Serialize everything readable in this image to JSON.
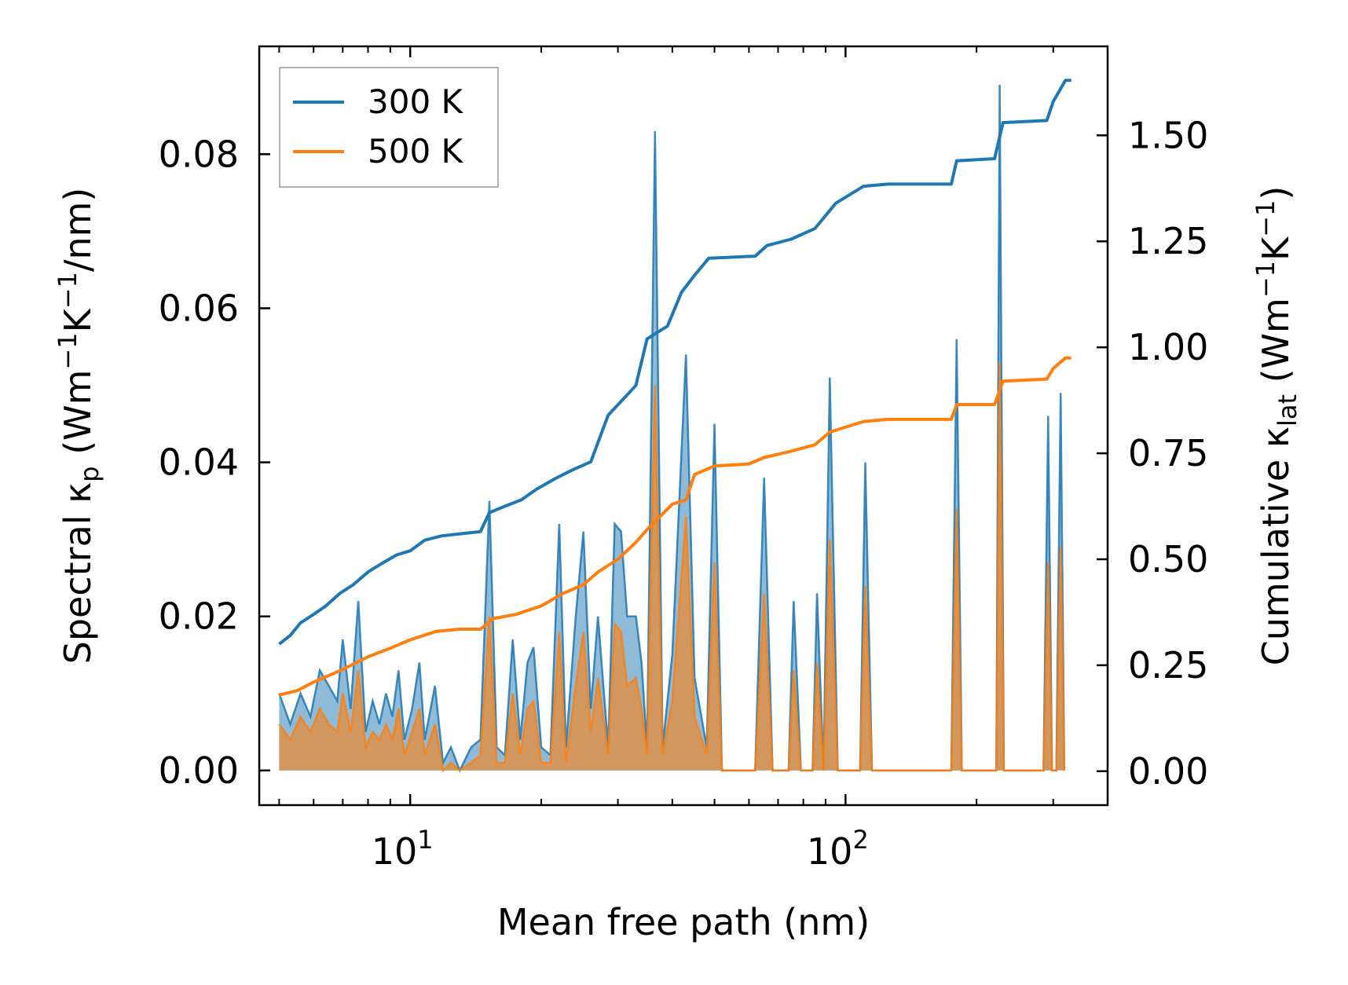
{
  "chart_data": {
    "type": "line",
    "xscale": "log",
    "xlabel": "Mean free path (nm)",
    "ylabel_left": {
      "prefix": "Spectral κ",
      "sub": "p",
      "units_pre": " (Wm",
      "sup1": "−1",
      "mid": "K",
      "sup2": "−1",
      "units_post": "/nm)"
    },
    "ylabel_right": {
      "prefix": "Cumulative κ",
      "sub": "lat",
      "units_pre": " (Wm",
      "sup1": "−1",
      "mid": "K",
      "sup2": "−1",
      "units_post": ")"
    },
    "xlim": [
      4.5,
      400
    ],
    "ylim_left": [
      -0.0045,
      0.094
    ],
    "ylim_right": [
      -0.08,
      1.71
    ],
    "x_ticks": [
      {
        "value": 10,
        "base": "10",
        "exp": "1"
      },
      {
        "value": 100,
        "base": "10",
        "exp": "2"
      }
    ],
    "y_ticks_left": [
      {
        "value": 0.0,
        "label": "0.00"
      },
      {
        "value": 0.02,
        "label": "0.02"
      },
      {
        "value": 0.04,
        "label": "0.04"
      },
      {
        "value": 0.06,
        "label": "0.06"
      },
      {
        "value": 0.08,
        "label": "0.08"
      }
    ],
    "y_ticks_right": [
      {
        "value": 0.0,
        "label": "0.00"
      },
      {
        "value": 0.25,
        "label": "0.25"
      },
      {
        "value": 0.5,
        "label": "0.50"
      },
      {
        "value": 0.75,
        "label": "0.75"
      },
      {
        "value": 1.0,
        "label": "1.00"
      },
      {
        "value": 1.25,
        "label": "1.25"
      },
      {
        "value": 1.5,
        "label": "1.50"
      }
    ],
    "legend": {
      "position": "top-left",
      "entries": [
        {
          "name": "300 K",
          "color": "#1f77b4"
        },
        {
          "name": "500 K",
          "color": "#ff7f0e"
        }
      ]
    },
    "series": [
      {
        "name": "300 K",
        "color": "#1f77b4",
        "axis": "right",
        "kind": "cumulative",
        "points": [
          [
            5.0,
            0.3
          ],
          [
            5.3,
            0.32
          ],
          [
            5.6,
            0.35
          ],
          [
            6.0,
            0.37
          ],
          [
            6.4,
            0.39
          ],
          [
            6.9,
            0.42
          ],
          [
            7.4,
            0.44
          ],
          [
            8.0,
            0.47
          ],
          [
            8.6,
            0.49
          ],
          [
            9.3,
            0.51
          ],
          [
            10.0,
            0.52
          ],
          [
            10.8,
            0.545
          ],
          [
            11.8,
            0.555
          ],
          [
            13.0,
            0.56
          ],
          [
            14.5,
            0.565
          ],
          [
            15.2,
            0.61
          ],
          [
            16.5,
            0.625
          ],
          [
            18.0,
            0.64
          ],
          [
            19.5,
            0.665
          ],
          [
            21.5,
            0.69
          ],
          [
            23.5,
            0.71
          ],
          [
            26.0,
            0.73
          ],
          [
            28.5,
            0.84
          ],
          [
            31.0,
            0.88
          ],
          [
            33.0,
            0.91
          ],
          [
            35.0,
            1.02
          ],
          [
            39.0,
            1.05
          ],
          [
            42.0,
            1.13
          ],
          [
            45.0,
            1.17
          ],
          [
            48.5,
            1.21
          ],
          [
            62.0,
            1.215
          ],
          [
            66.0,
            1.24
          ],
          [
            75.0,
            1.255
          ],
          [
            85.0,
            1.28
          ],
          [
            95.0,
            1.34
          ],
          [
            110.0,
            1.38
          ],
          [
            125.0,
            1.385
          ],
          [
            175.0,
            1.385
          ],
          [
            180.0,
            1.44
          ],
          [
            220.0,
            1.445
          ],
          [
            230.0,
            1.53
          ],
          [
            290.0,
            1.535
          ],
          [
            300.0,
            1.58
          ],
          [
            320.0,
            1.63
          ],
          [
            330.0,
            1.63
          ]
        ]
      },
      {
        "name": "500 K",
        "color": "#ff7f0e",
        "axis": "right",
        "kind": "cumulative",
        "points": [
          [
            5.0,
            0.18
          ],
          [
            5.5,
            0.19
          ],
          [
            6.0,
            0.21
          ],
          [
            7.0,
            0.24
          ],
          [
            8.0,
            0.27
          ],
          [
            9.0,
            0.29
          ],
          [
            10.0,
            0.31
          ],
          [
            11.5,
            0.33
          ],
          [
            13.0,
            0.335
          ],
          [
            14.5,
            0.335
          ],
          [
            15.5,
            0.36
          ],
          [
            17.5,
            0.37
          ],
          [
            20.0,
            0.39
          ],
          [
            22.5,
            0.42
          ],
          [
            25.0,
            0.44
          ],
          [
            27.0,
            0.47
          ],
          [
            30.0,
            0.5
          ],
          [
            33.0,
            0.54
          ],
          [
            35.0,
            0.57
          ],
          [
            40.0,
            0.63
          ],
          [
            43.0,
            0.64
          ],
          [
            45.0,
            0.7
          ],
          [
            50.0,
            0.72
          ],
          [
            60.0,
            0.725
          ],
          [
            65.0,
            0.74
          ],
          [
            75.0,
            0.755
          ],
          [
            85.0,
            0.77
          ],
          [
            92.0,
            0.8
          ],
          [
            110.0,
            0.825
          ],
          [
            125.0,
            0.83
          ],
          [
            175.0,
            0.83
          ],
          [
            180.0,
            0.865
          ],
          [
            220.0,
            0.865
          ],
          [
            230.0,
            0.92
          ],
          [
            290.0,
            0.925
          ],
          [
            300.0,
            0.95
          ],
          [
            320.0,
            0.975
          ],
          [
            330.0,
            0.975
          ]
        ]
      },
      {
        "name": "300 K",
        "color": "#1f77b4",
        "axis": "left",
        "kind": "spectral",
        "points": [
          [
            5.0,
            0.01
          ],
          [
            5.3,
            0.006
          ],
          [
            5.6,
            0.01
          ],
          [
            5.9,
            0.007
          ],
          [
            6.2,
            0.013
          ],
          [
            6.5,
            0.011
          ],
          [
            6.8,
            0.009
          ],
          [
            7.0,
            0.017
          ],
          [
            7.3,
            0.008
          ],
          [
            7.6,
            0.022
          ],
          [
            7.9,
            0.005
          ],
          [
            8.2,
            0.009
          ],
          [
            8.5,
            0.006
          ],
          [
            8.8,
            0.01
          ],
          [
            9.1,
            0.007
          ],
          [
            9.4,
            0.013
          ],
          [
            9.7,
            0.004
          ],
          [
            10.1,
            0.008
          ],
          [
            10.5,
            0.014
          ],
          [
            10.8,
            0.004
          ],
          [
            11.4,
            0.011
          ],
          [
            11.9,
            0.001
          ],
          [
            12.4,
            0.003
          ],
          [
            13.0,
            0.0
          ],
          [
            13.8,
            0.003
          ],
          [
            14.5,
            0.004
          ],
          [
            15.2,
            0.035
          ],
          [
            15.8,
            0.003
          ],
          [
            16.5,
            0.002
          ],
          [
            17.2,
            0.017
          ],
          [
            17.9,
            0.004
          ],
          [
            18.6,
            0.014
          ],
          [
            19.2,
            0.016
          ],
          [
            20.0,
            0.003
          ],
          [
            21.0,
            0.002
          ],
          [
            22.0,
            0.032
          ],
          [
            22.8,
            0.003
          ],
          [
            24.0,
            0.02
          ],
          [
            25.0,
            0.031
          ],
          [
            26.0,
            0.008
          ],
          [
            27.0,
            0.02
          ],
          [
            28.5,
            0.003
          ],
          [
            29.5,
            0.032
          ],
          [
            30.5,
            0.031
          ],
          [
            31.5,
            0.02
          ],
          [
            33.0,
            0.02
          ],
          [
            34.0,
            0.014
          ],
          [
            35.0,
            0.003
          ],
          [
            36.5,
            0.083
          ],
          [
            38.0,
            0.003
          ],
          [
            40.0,
            0.015
          ],
          [
            43.0,
            0.054
          ],
          [
            45.0,
            0.012
          ],
          [
            48.0,
            0.003
          ],
          [
            50.0,
            0.045
          ],
          [
            52.0,
            0.0
          ],
          [
            62.0,
            0.0
          ],
          [
            65.0,
            0.038
          ],
          [
            68.0,
            0.0
          ],
          [
            74.0,
            0.0
          ],
          [
            76.0,
            0.022
          ],
          [
            79.0,
            0.0
          ],
          [
            84.0,
            0.0
          ],
          [
            86.0,
            0.023
          ],
          [
            89.0,
            0.0
          ],
          [
            92.0,
            0.051
          ],
          [
            96.0,
            0.0
          ],
          [
            108.0,
            0.0
          ],
          [
            111.0,
            0.04
          ],
          [
            115.0,
            0.0
          ],
          [
            175.0,
            0.0
          ],
          [
            180.0,
            0.056
          ],
          [
            185.0,
            0.0
          ],
          [
            222.0,
            0.0
          ],
          [
            226.0,
            0.089
          ],
          [
            231.0,
            0.0
          ],
          [
            285.0,
            0.0
          ],
          [
            292.0,
            0.046
          ],
          [
            298.0,
            0.0
          ],
          [
            305.0,
            0.0
          ],
          [
            312.0,
            0.049
          ],
          [
            318.0,
            0.0
          ]
        ]
      },
      {
        "name": "500 K",
        "color": "#ff7f0e",
        "axis": "left",
        "kind": "spectral",
        "points": [
          [
            5.0,
            0.006
          ],
          [
            5.3,
            0.004
          ],
          [
            5.6,
            0.007
          ],
          [
            5.9,
            0.005
          ],
          [
            6.2,
            0.008
          ],
          [
            6.5,
            0.006
          ],
          [
            6.8,
            0.005
          ],
          [
            7.0,
            0.01
          ],
          [
            7.3,
            0.005
          ],
          [
            7.6,
            0.013
          ],
          [
            7.9,
            0.003
          ],
          [
            8.2,
            0.005
          ],
          [
            8.5,
            0.004
          ],
          [
            8.8,
            0.006
          ],
          [
            9.1,
            0.004
          ],
          [
            9.4,
            0.008
          ],
          [
            9.7,
            0.002
          ],
          [
            10.1,
            0.005
          ],
          [
            10.5,
            0.008
          ],
          [
            10.8,
            0.002
          ],
          [
            11.4,
            0.006
          ],
          [
            11.9,
            0.0
          ],
          [
            12.4,
            0.001
          ],
          [
            13.0,
            0.0
          ],
          [
            13.8,
            0.001
          ],
          [
            14.5,
            0.002
          ],
          [
            15.2,
            0.02
          ],
          [
            15.8,
            0.001
          ],
          [
            16.5,
            0.001
          ],
          [
            17.2,
            0.01
          ],
          [
            17.9,
            0.002
          ],
          [
            18.6,
            0.008
          ],
          [
            19.2,
            0.009
          ],
          [
            20.0,
            0.001
          ],
          [
            21.0,
            0.001
          ],
          [
            22.0,
            0.018
          ],
          [
            22.8,
            0.001
          ],
          [
            24.0,
            0.011
          ],
          [
            25.0,
            0.018
          ],
          [
            26.0,
            0.005
          ],
          [
            27.0,
            0.012
          ],
          [
            28.5,
            0.002
          ],
          [
            29.5,
            0.019
          ],
          [
            30.5,
            0.018
          ],
          [
            31.5,
            0.011
          ],
          [
            33.0,
            0.012
          ],
          [
            34.0,
            0.008
          ],
          [
            35.0,
            0.002
          ],
          [
            36.5,
            0.05
          ],
          [
            38.0,
            0.002
          ],
          [
            40.0,
            0.009
          ],
          [
            43.0,
            0.033
          ],
          [
            45.0,
            0.007
          ],
          [
            48.0,
            0.002
          ],
          [
            50.0,
            0.027
          ],
          [
            52.0,
            0.0
          ],
          [
            62.0,
            0.0
          ],
          [
            65.0,
            0.023
          ],
          [
            68.0,
            0.0
          ],
          [
            74.0,
            0.0
          ],
          [
            76.0,
            0.013
          ],
          [
            79.0,
            0.0
          ],
          [
            84.0,
            0.0
          ],
          [
            86.0,
            0.014
          ],
          [
            89.0,
            0.0
          ],
          [
            92.0,
            0.03
          ],
          [
            96.0,
            0.0
          ],
          [
            108.0,
            0.0
          ],
          [
            111.0,
            0.024
          ],
          [
            115.0,
            0.0
          ],
          [
            175.0,
            0.0
          ],
          [
            180.0,
            0.034
          ],
          [
            185.0,
            0.0
          ],
          [
            222.0,
            0.0
          ],
          [
            226.0,
            0.053
          ],
          [
            231.0,
            0.0
          ],
          [
            285.0,
            0.0
          ],
          [
            292.0,
            0.027
          ],
          [
            298.0,
            0.0
          ],
          [
            305.0,
            0.0
          ],
          [
            312.0,
            0.029
          ],
          [
            318.0,
            0.0
          ]
        ]
      }
    ]
  }
}
